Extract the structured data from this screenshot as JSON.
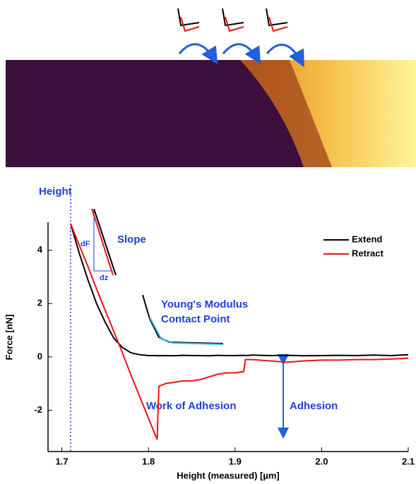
{
  "chart_data": {
    "type": "line",
    "x_label": "Height (measured) [µm]",
    "y_label": "Force [nN]",
    "x": [
      1.71,
      1.72,
      1.73,
      1.74,
      1.75,
      1.76,
      1.77,
      1.78,
      1.79,
      1.8,
      1.81,
      1.812,
      1.82,
      1.83,
      1.84,
      1.85,
      1.86,
      1.87,
      1.88,
      1.89,
      1.9,
      1.91,
      1.912,
      1.92,
      1.94,
      1.96,
      1.98,
      2.0,
      2.02,
      2.04,
      2.06,
      2.08,
      2.1
    ],
    "series": [
      {
        "name": "Extend",
        "color": "#000000",
        "values": [
          5,
          3.9,
          2.9,
          2.0,
          1.3,
          0.7,
          0.35,
          0.15,
          0.08,
          0.05,
          0.05,
          0.04,
          0.05,
          0.04,
          0.06,
          0.05,
          0.05,
          0.04,
          0.06,
          0.05,
          0.05,
          0.06,
          0.05,
          0.07,
          0.05,
          0.06,
          0.04,
          0.05,
          0.06,
          0.05,
          0.07,
          0.05,
          0.08
        ]
      },
      {
        "name": "Retract",
        "color": "#ee1111",
        "values": [
          5,
          4.2,
          3.4,
          2.55,
          1.75,
          0.95,
          0.15,
          -0.7,
          -1.5,
          -2.3,
          -3.1,
          -1.1,
          -1.0,
          -0.95,
          -0.9,
          -0.9,
          -0.85,
          -0.75,
          -0.65,
          -0.6,
          -0.6,
          -0.55,
          -0.1,
          -0.1,
          -0.15,
          -0.2,
          -0.15,
          -0.12,
          -0.12,
          -0.1,
          -0.1,
          -0.08,
          -0.05
        ]
      }
    ],
    "xlim": [
      1.684,
      2.1
    ],
    "ylim": [
      -3.55,
      5.05
    ],
    "xticks": [
      1.7,
      1.8,
      1.9,
      {
        "value": 2.0,
        "label": "2.0"
      },
      2.1
    ],
    "yticks": [
      -2,
      0,
      2,
      4
    ],
    "height_line_x": 1.71,
    "annotations": {
      "height": "Height",
      "slope": "Slope",
      "df": "dF",
      "dz": "dz",
      "youngs_modulus": "Young's Modulus",
      "contact_point": "Contact Point",
      "work_of_adhesion": "Work of Adhesion",
      "adhesion": "Adhesion"
    },
    "legend": "upper right"
  }
}
